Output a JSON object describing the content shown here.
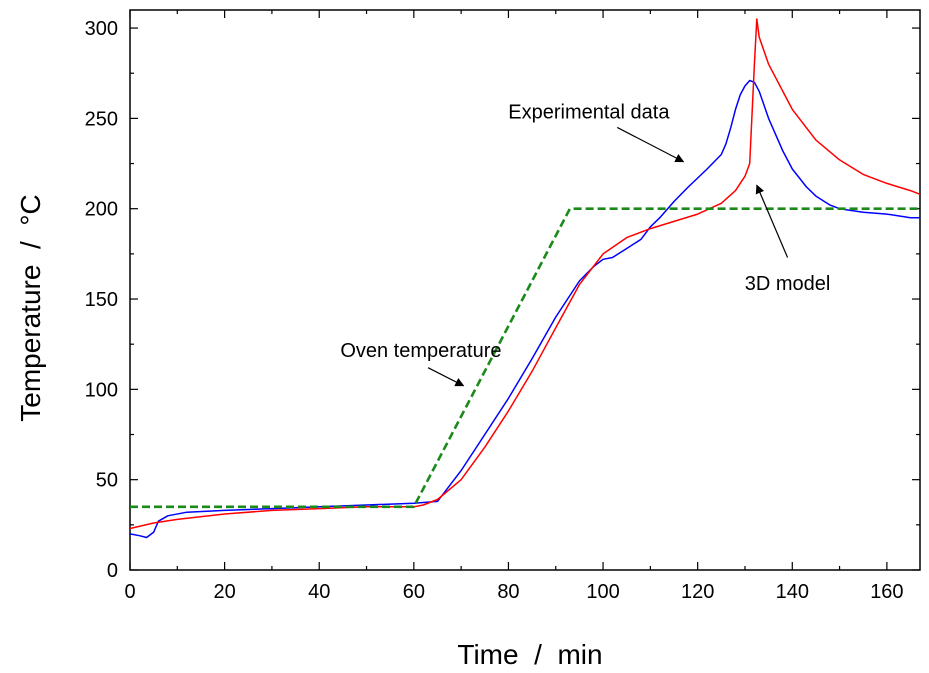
{
  "chart_data": {
    "type": "line",
    "title": "",
    "xlabel": "Time  /  min",
    "ylabel": "Temperature  /  °C",
    "xlim": [
      0,
      167
    ],
    "ylim": [
      0,
      310
    ],
    "xticks": [
      0,
      20,
      40,
      60,
      80,
      100,
      120,
      140,
      160
    ],
    "yticks": [
      0,
      50,
      100,
      150,
      200,
      250,
      300
    ],
    "grid": false,
    "legend": "none",
    "series": [
      {
        "key": "experimental",
        "color": "#0000ff",
        "style": "solid",
        "x": [
          0,
          2,
          3.5,
          5,
          6,
          8,
          12,
          20,
          30,
          40,
          50,
          60,
          65,
          70,
          75,
          80,
          85,
          90,
          95,
          98,
          100,
          102,
          105,
          108,
          110,
          112,
          115,
          118,
          120,
          122,
          125,
          126,
          127,
          128,
          129,
          130,
          131,
          132,
          133,
          135,
          138,
          140,
          143,
          145,
          148,
          150,
          155,
          160,
          165,
          167
        ],
        "y": [
          20,
          19,
          18,
          21,
          27,
          30,
          32,
          33,
          34,
          35,
          36,
          37,
          38,
          55,
          75,
          95,
          117,
          140,
          160,
          168,
          172,
          173,
          178,
          183,
          190,
          195,
          204,
          212,
          217,
          222,
          230,
          236,
          245,
          255,
          263,
          268,
          271,
          270,
          265,
          250,
          232,
          222,
          212,
          207,
          202,
          200,
          198,
          197,
          195,
          195
        ]
      },
      {
        "key": "model",
        "color": "#ff0000",
        "style": "solid",
        "x": [
          0,
          5,
          10,
          20,
          30,
          40,
          50,
          60,
          62,
          65,
          70,
          75,
          80,
          85,
          90,
          95,
          100,
          105,
          110,
          115,
          120,
          125,
          128,
          130,
          131,
          132,
          132.5,
          133,
          135,
          140,
          145,
          150,
          155,
          160,
          165,
          167
        ],
        "y": [
          23,
          26,
          28,
          31,
          33,
          34,
          35,
          35,
          36,
          39,
          50,
          68,
          88,
          110,
          134,
          158,
          175,
          184,
          189,
          193,
          197,
          203,
          210,
          218,
          225,
          280,
          305,
          295,
          280,
          255,
          238,
          227,
          219,
          214,
          210,
          208
        ]
      },
      {
        "key": "oven",
        "color": "#1a8a1a",
        "style": "dashed",
        "x": [
          0,
          60,
          93,
          167
        ],
        "y": [
          35,
          35,
          200,
          200
        ]
      }
    ],
    "annotations": [
      {
        "key": "experimental",
        "text": "Experimental data",
        "text_x": 97,
        "text_y": 250,
        "arrow_from": [
          103,
          245
        ],
        "arrow_to": [
          117,
          226
        ]
      },
      {
        "key": "model",
        "text": "3D model",
        "text_x": 139,
        "text_y": 155,
        "arrow_from": [
          139,
          173
        ],
        "arrow_to": [
          132.5,
          213
        ]
      },
      {
        "key": "oven",
        "text": "Oven temperature",
        "text_x": 61.5,
        "text_y": 118,
        "arrow_from": [
          63,
          112
        ],
        "arrow_to": [
          70.5,
          102
        ]
      }
    ]
  }
}
